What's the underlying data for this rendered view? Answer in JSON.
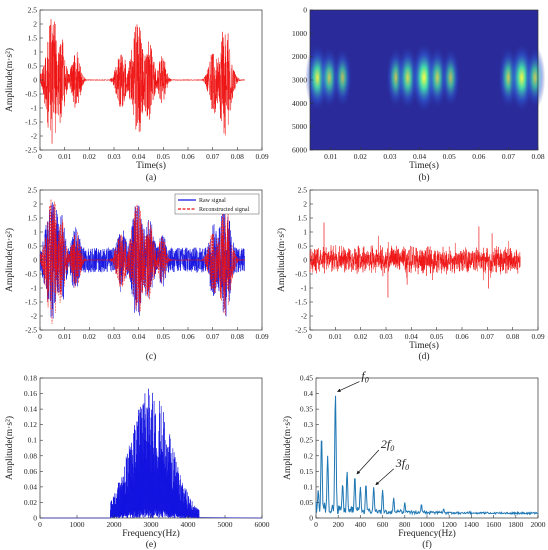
{
  "colors": {
    "red": "#ee1111",
    "blue": "#1515e0",
    "teal": "#1f77b4",
    "axis": "#333333",
    "spectro_bg": "#2a2a9a"
  },
  "chart_data": [
    {
      "id": "a",
      "type": "line",
      "caption": "(a)",
      "xlabel": "Time(s)",
      "ylabel": "Amplitude(m·s²)",
      "xlim": [
        0,
        0.09
      ],
      "ylim": [
        -2.5,
        2.5
      ],
      "xticks": [
        "0",
        "0.01",
        "0.02",
        "0.03",
        "0.04",
        "0.05",
        "0.06",
        "0.07",
        "0.08",
        "0.09"
      ],
      "yticks": [
        "2.5",
        "2",
        "1.5",
        "1",
        "0.5",
        "0",
        "-0.5",
        "-1",
        "-1.5",
        "-2",
        "-2.5"
      ],
      "series": [
        {
          "color": "#ee1111",
          "x_range": [
            0,
            0.083
          ],
          "baseline": 0.02,
          "bursts": [
            {
              "t": 0.005,
              "amp": 2.3,
              "width": 0.0032
            },
            {
              "t": 0.0085,
              "amp": 1.6,
              "width": 0.0022
            },
            {
              "t": 0.0145,
              "amp": 1.1,
              "width": 0.0022
            },
            {
              "t": 0.033,
              "amp": 1.1,
              "width": 0.0025
            },
            {
              "t": 0.0395,
              "amp": 2.1,
              "width": 0.003
            },
            {
              "t": 0.044,
              "amp": 1.5,
              "width": 0.0025
            },
            {
              "t": 0.0495,
              "amp": 0.9,
              "width": 0.002
            },
            {
              "t": 0.0705,
              "amp": 1.2,
              "width": 0.0025
            },
            {
              "t": 0.075,
              "amp": 2.0,
              "width": 0.003
            }
          ]
        }
      ]
    },
    {
      "id": "b",
      "type": "heatmap",
      "caption": "(b)",
      "xlabel": "Time(s)",
      "xlim": [
        0.003,
        0.08
      ],
      "ylim": [
        0,
        6000
      ],
      "xticks": [
        "0.01",
        "0.02",
        "0.03",
        "0.04",
        "0.05",
        "0.06",
        "0.07",
        "0.08"
      ],
      "yticks": [
        "0",
        "1000",
        "2000",
        "3000",
        "4000",
        "5000",
        "6000"
      ],
      "y_inverted": true,
      "blobs": [
        {
          "t": 0.0055,
          "f": 2900,
          "intensity": 0.85
        },
        {
          "t": 0.0095,
          "f": 2900,
          "intensity": 0.55
        },
        {
          "t": 0.014,
          "f": 2900,
          "intensity": 0.45
        },
        {
          "t": 0.032,
          "f": 2900,
          "intensity": 0.5
        },
        {
          "t": 0.036,
          "f": 2900,
          "intensity": 0.7
        },
        {
          "t": 0.0415,
          "f": 2900,
          "intensity": 1.0
        },
        {
          "t": 0.046,
          "f": 2900,
          "intensity": 0.6
        },
        {
          "t": 0.0505,
          "f": 2900,
          "intensity": 0.45
        },
        {
          "t": 0.07,
          "f": 2900,
          "intensity": 0.6
        },
        {
          "t": 0.0745,
          "f": 2900,
          "intensity": 0.95
        },
        {
          "t": 0.079,
          "f": 2900,
          "intensity": 0.55
        }
      ]
    },
    {
      "id": "c",
      "type": "line",
      "caption": "(c)",
      "xlabel": "Time(s)",
      "ylabel": "Amplitude(m·s²)",
      "xlim": [
        0,
        0.09
      ],
      "ylim": [
        -2.5,
        2.5
      ],
      "xticks": [
        "0",
        "0.01",
        "0.02",
        "0.03",
        "0.04",
        "0.05",
        "0.06",
        "0.07",
        "0.08",
        "0.09"
      ],
      "yticks": [
        "2.5",
        "2",
        "1.5",
        "1",
        "0.5",
        "0",
        "-0.5",
        "-1",
        "-1.5",
        "-2",
        "-2.5"
      ],
      "legend": {
        "position": "top-right",
        "entries": [
          "Raw signal",
          "Reconstructed signal"
        ]
      },
      "series": [
        {
          "name": "Raw signal",
          "color": "#1515e0",
          "x_range": [
            0,
            0.083
          ],
          "baseline": 0.45,
          "bursts": [
            {
              "t": 0.005,
              "amp": 2.3,
              "width": 0.0035
            },
            {
              "t": 0.0085,
              "amp": 1.7,
              "width": 0.0025
            },
            {
              "t": 0.0145,
              "amp": 1.2,
              "width": 0.0025
            },
            {
              "t": 0.033,
              "amp": 1.2,
              "width": 0.0028
            },
            {
              "t": 0.0395,
              "amp": 2.2,
              "width": 0.0032
            },
            {
              "t": 0.044,
              "amp": 1.6,
              "width": 0.0028
            },
            {
              "t": 0.0495,
              "amp": 1.0,
              "width": 0.0022
            },
            {
              "t": 0.0705,
              "amp": 1.3,
              "width": 0.0028
            },
            {
              "t": 0.075,
              "amp": 2.1,
              "width": 0.0032
            }
          ]
        },
        {
          "name": "Reconstructed signal",
          "color": "#ee1111",
          "dashed": true,
          "x_range": [
            0,
            0.083
          ],
          "baseline": 0.02,
          "bursts": [
            {
              "t": 0.005,
              "amp": 2.3,
              "width": 0.0032
            },
            {
              "t": 0.0085,
              "amp": 1.6,
              "width": 0.0022
            },
            {
              "t": 0.0145,
              "amp": 1.1,
              "width": 0.0022
            },
            {
              "t": 0.033,
              "amp": 1.1,
              "width": 0.0025
            },
            {
              "t": 0.0395,
              "amp": 2.1,
              "width": 0.003
            },
            {
              "t": 0.044,
              "amp": 1.5,
              "width": 0.0025
            },
            {
              "t": 0.0495,
              "amp": 0.9,
              "width": 0.002
            },
            {
              "t": 0.0705,
              "amp": 1.2,
              "width": 0.0025
            },
            {
              "t": 0.075,
              "amp": 2.0,
              "width": 0.003
            }
          ]
        }
      ]
    },
    {
      "id": "d",
      "type": "line",
      "caption": "(d)",
      "xlabel": "Time(s)",
      "ylabel": "Amplitude(m·s²)",
      "xlim": [
        0,
        0.09
      ],
      "ylim": [
        -2.5,
        2.5
      ],
      "xticks": [
        "0",
        "0.01",
        "0.02",
        "0.03",
        "0.04",
        "0.05",
        "0.06",
        "0.07",
        "0.08",
        "0.09"
      ],
      "yticks": [
        "2.5",
        "2",
        "1.5",
        "1",
        "0.5",
        "0",
        "-0.5",
        "-1",
        "-1.5",
        "-2",
        "-2.5"
      ],
      "series": [
        {
          "color": "#ee1111",
          "x_range": [
            0,
            0.083
          ],
          "baseline": 0.42,
          "peak_amplitude": 1.3,
          "bursts": []
        }
      ]
    },
    {
      "id": "e",
      "type": "line",
      "caption": "(e)",
      "xlabel": "Frequency(Hz)",
      "ylabel": "Amplitude(m·s²)",
      "xlim": [
        0,
        6000
      ],
      "ylim": [
        0,
        0.18
      ],
      "xticks": [
        "0",
        "1000",
        "2000",
        "3000",
        "4000",
        "5000",
        "6000"
      ],
      "yticks": [
        "0.18",
        "0.16",
        "0.14",
        "0.12",
        "0.1",
        "0.08",
        "0.06",
        "0.04",
        "0.02",
        "0"
      ],
      "series": [
        {
          "color": "#1515e0",
          "center_hz": 3000,
          "spread_hz": 550,
          "peak": 0.168,
          "range_hz": [
            1900,
            4300
          ]
        }
      ]
    },
    {
      "id": "f",
      "type": "line",
      "caption": "(f)",
      "xlabel": "Frequency(Hz)",
      "ylabel": "Amplitude(m·s²)",
      "xlim": [
        0,
        2000
      ],
      "ylim": [
        0,
        0.45
      ],
      "xticks": [
        "0",
        "200",
        "400",
        "600",
        "800",
        "1000",
        "1200",
        "1400",
        "1600",
        "1800",
        "2000"
      ],
      "yticks": [
        "0.45",
        "0.4",
        "0.35",
        "0.3",
        "0.25",
        "0.2",
        "0.15",
        "0.1",
        "0.05",
        "0"
      ],
      "peaks": [
        {
          "hz": 20,
          "value": 0.09
        },
        {
          "hz": 50,
          "value": 0.265
        },
        {
          "hz": 105,
          "value": 0.2
        },
        {
          "hz": 175,
          "value": 0.4
        },
        {
          "hz": 240,
          "value": 0.11
        },
        {
          "hz": 280,
          "value": 0.15
        },
        {
          "hz": 350,
          "value": 0.135
        },
        {
          "hz": 400,
          "value": 0.1
        },
        {
          "hz": 450,
          "value": 0.11
        },
        {
          "hz": 520,
          "value": 0.1
        },
        {
          "hz": 600,
          "value": 0.09
        },
        {
          "hz": 700,
          "value": 0.065
        },
        {
          "hz": 800,
          "value": 0.05
        },
        {
          "hz": 950,
          "value": 0.045
        },
        {
          "hz": 1150,
          "value": 0.03
        }
      ],
      "annotations": [
        {
          "label": "f",
          "sub": "0",
          "hz": 175,
          "value": 0.4
        },
        {
          "label": "2f",
          "sub": "0",
          "hz": 350,
          "value": 0.135
        },
        {
          "label": "3f",
          "sub": "0",
          "hz": 520,
          "value": 0.1
        }
      ]
    }
  ]
}
